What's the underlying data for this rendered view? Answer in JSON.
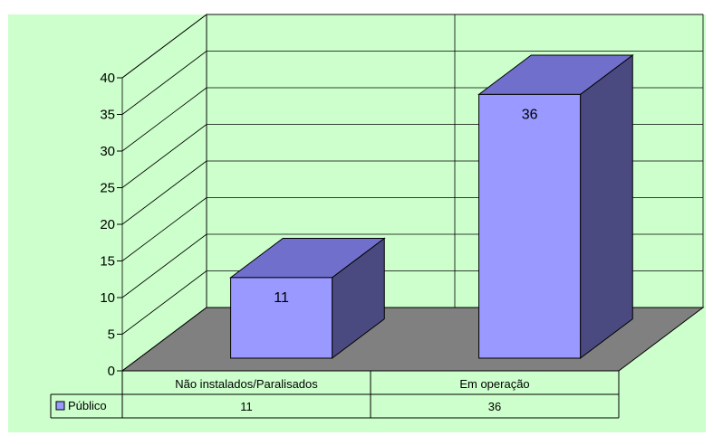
{
  "chart_data": {
    "type": "bar",
    "style": "3d-column-with-data-table",
    "categories": [
      "Não instalados/Paralisados",
      "Em operação"
    ],
    "series": [
      {
        "name": "Público",
        "values": [
          11,
          36
        ],
        "color": "#9999ff"
      }
    ],
    "ylim": [
      0,
      40
    ],
    "yticks": [
      0,
      5,
      10,
      15,
      20,
      25,
      30,
      35,
      40
    ],
    "ytick_labels": [
      "0",
      "5",
      "10",
      "15",
      "20",
      "25",
      "30",
      "35",
      "40"
    ],
    "data_labels": [
      "11",
      "36"
    ],
    "grid": true,
    "legend": "data-table",
    "data_table": {
      "row_label": "Público",
      "cells": [
        "11",
        "36"
      ]
    },
    "colors": {
      "background": "#ccffcc",
      "floor": "#808080",
      "bar_front": "#9999ff",
      "bar_top": "#7070cc",
      "bar_side": "#4a4a80",
      "gridline": "#000000"
    }
  }
}
